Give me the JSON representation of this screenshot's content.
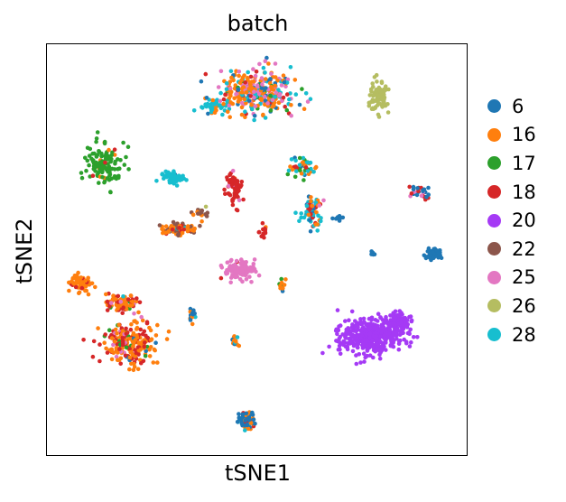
{
  "chart_data": {
    "type": "scatter",
    "title": "batch",
    "xlabel": "tSNE1",
    "ylabel": "tSNE2",
    "xlim": [
      0,
      100
    ],
    "ylim": [
      0,
      100
    ],
    "grid": false,
    "ticks": false,
    "legend_placement": "right",
    "legend_title": "",
    "series": [
      {
        "name": "6",
        "color": "#1f77b4"
      },
      {
        "name": "16",
        "color": "#ff7f0e"
      },
      {
        "name": "17",
        "color": "#2ca02c"
      },
      {
        "name": "18",
        "color": "#d62728"
      },
      {
        "name": "20",
        "color": "#a53af5"
      },
      {
        "name": "22",
        "color": "#8c564b"
      },
      {
        "name": "25",
        "color": "#e377c2"
      },
      {
        "name": "26",
        "color": "#b5bd61"
      },
      {
        "name": "28",
        "color": "#17becf"
      }
    ],
    "clusters": [
      {
        "cx": 50.5,
        "cy": 88.5,
        "sx": 8.0,
        "sy": 5.0,
        "n": 320,
        "mix": {
          "16": 0.42,
          "25": 0.2,
          "28": 0.18,
          "6": 0.1,
          "18": 0.06,
          "17": 0.04
        }
      },
      {
        "cx": 40.0,
        "cy": 84.5,
        "sx": 3.5,
        "sy": 1.2,
        "n": 45,
        "mix": {
          "28": 0.85,
          "16": 0.1,
          "6": 0.05
        }
      },
      {
        "cx": 79.0,
        "cy": 87.0,
        "sx": 2.5,
        "sy": 3.2,
        "n": 80,
        "mix": {
          "26": 1.0
        }
      },
      {
        "cx": 13.5,
        "cy": 70.5,
        "sx": 3.5,
        "sy": 5.0,
        "n": 120,
        "mix": {
          "17": 0.93,
          "16": 0.04,
          "18": 0.03
        }
      },
      {
        "cx": 30.0,
        "cy": 67.5,
        "sx": 2.8,
        "sy": 1.3,
        "n": 55,
        "mix": {
          "28": 0.95,
          "6": 0.05
        }
      },
      {
        "cx": 44.5,
        "cy": 65.0,
        "sx": 1.8,
        "sy": 3.8,
        "n": 70,
        "mix": {
          "18": 0.93,
          "25": 0.04,
          "16": 0.03
        }
      },
      {
        "cx": 61.0,
        "cy": 70.0,
        "sx": 3.0,
        "sy": 2.5,
        "n": 50,
        "mix": {
          "28": 0.4,
          "16": 0.25,
          "17": 0.15,
          "6": 0.1,
          "18": 0.1
        }
      },
      {
        "cx": 63.0,
        "cy": 59.5,
        "sx": 2.5,
        "sy": 3.5,
        "n": 80,
        "mix": {
          "28": 0.45,
          "16": 0.2,
          "6": 0.15,
          "18": 0.1,
          "25": 0.1
        }
      },
      {
        "cx": 69.5,
        "cy": 57.5,
        "sx": 1.0,
        "sy": 0.7,
        "n": 12,
        "mix": {
          "6": 1.0
        }
      },
      {
        "cx": 88.5,
        "cy": 64.0,
        "sx": 2.5,
        "sy": 1.4,
        "n": 30,
        "mix": {
          "6": 0.55,
          "18": 0.25,
          "25": 0.2
        }
      },
      {
        "cx": 92.0,
        "cy": 49.0,
        "sx": 2.0,
        "sy": 1.3,
        "n": 45,
        "mix": {
          "6": 1.0
        }
      },
      {
        "cx": 77.5,
        "cy": 49.0,
        "sx": 0.6,
        "sy": 0.5,
        "n": 5,
        "mix": {
          "6": 1.0
        }
      },
      {
        "cx": 31.5,
        "cy": 55.0,
        "sx": 4.0,
        "sy": 1.4,
        "n": 80,
        "mix": {
          "22": 0.55,
          "16": 0.3,
          "18": 0.1,
          "28": 0.05
        }
      },
      {
        "cx": 37.0,
        "cy": 59.0,
        "sx": 2.0,
        "sy": 0.8,
        "n": 18,
        "mix": {
          "22": 0.4,
          "16": 0.3,
          "17": 0.2,
          "26": 0.1
        }
      },
      {
        "cx": 51.5,
        "cy": 54.5,
        "sx": 0.8,
        "sy": 1.5,
        "n": 15,
        "mix": {
          "18": 0.9,
          "16": 0.1
        }
      },
      {
        "cx": 46.0,
        "cy": 45.0,
        "sx": 3.5,
        "sy": 2.0,
        "n": 120,
        "mix": {
          "25": 0.95,
          "18": 0.03,
          "16": 0.02
        }
      },
      {
        "cx": 56.0,
        "cy": 41.0,
        "sx": 0.9,
        "sy": 1.3,
        "n": 15,
        "mix": {
          "16": 0.6,
          "6": 0.2,
          "17": 0.2
        }
      },
      {
        "cx": 77.0,
        "cy": 29.0,
        "sx": 7.0,
        "sy": 4.0,
        "n": 420,
        "mix": {
          "20": 1.0
        }
      },
      {
        "cx": 83.5,
        "cy": 32.5,
        "sx": 3.0,
        "sy": 2.0,
        "n": 90,
        "mix": {
          "20": 1.0
        }
      },
      {
        "cx": 8.5,
        "cy": 42.0,
        "sx": 2.5,
        "sy": 2.0,
        "n": 70,
        "mix": {
          "16": 0.8,
          "18": 0.1,
          "25": 0.05,
          "28": 0.05
        }
      },
      {
        "cx": 18.0,
        "cy": 37.0,
        "sx": 4.0,
        "sy": 2.0,
        "n": 90,
        "mix": {
          "16": 0.5,
          "18": 0.3,
          "25": 0.1,
          "28": 0.05,
          "17": 0.05
        }
      },
      {
        "cx": 19.5,
        "cy": 27.0,
        "sx": 6.0,
        "sy": 4.5,
        "n": 230,
        "mix": {
          "16": 0.6,
          "18": 0.25,
          "6": 0.05,
          "17": 0.05,
          "25": 0.05
        }
      },
      {
        "cx": 34.5,
        "cy": 34.0,
        "sx": 0.8,
        "sy": 1.5,
        "n": 14,
        "mix": {
          "6": 0.5,
          "16": 0.3,
          "28": 0.2
        }
      },
      {
        "cx": 45.0,
        "cy": 28.0,
        "sx": 0.7,
        "sy": 2.0,
        "n": 14,
        "mix": {
          "16": 0.4,
          "28": 0.3,
          "6": 0.3
        }
      },
      {
        "cx": 47.5,
        "cy": 8.5,
        "sx": 1.8,
        "sy": 2.2,
        "n": 65,
        "mix": {
          "6": 0.65,
          "16": 0.2,
          "18": 0.1,
          "28": 0.05
        }
      }
    ]
  }
}
